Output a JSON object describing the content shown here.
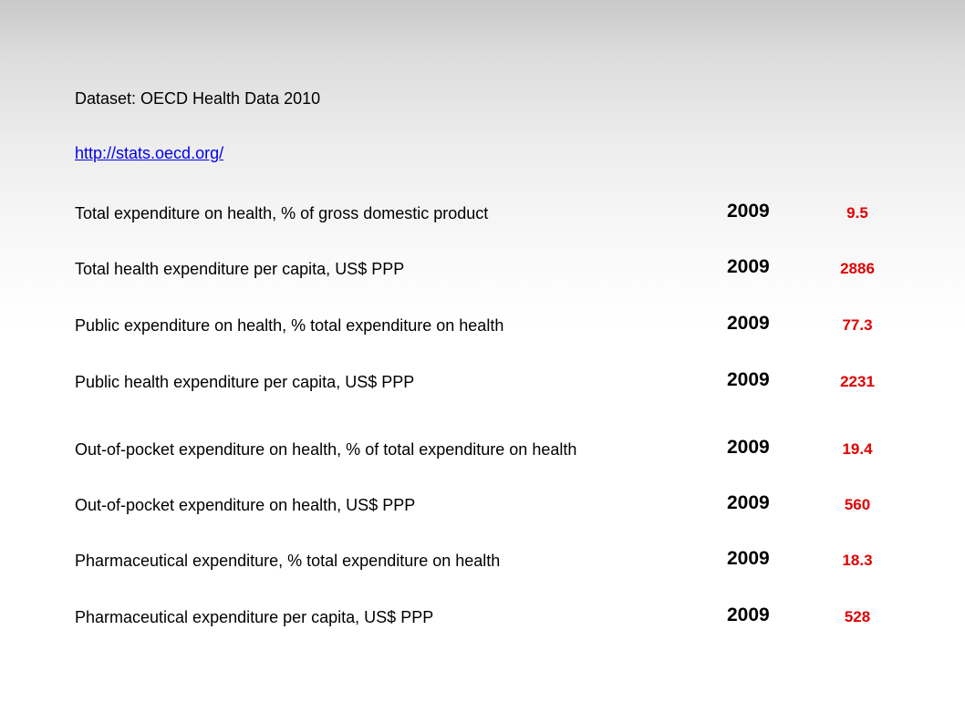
{
  "dataset_title": "Dataset: OECD Health Data 2010",
  "source_link": "http://stats.oecd.org/",
  "value_color": "#e00000",
  "rows": [
    {
      "label": "Total expenditure on health, % of gross domestic product",
      "year": "2009",
      "value": "9.5"
    },
    {
      "label": "Total health expenditure per capita, US$ PPP",
      "year": "2009",
      "value": "2886"
    },
    {
      "label": "Public expenditure on health, % total expenditure on health",
      "year": "2009",
      "value": "77.3"
    },
    {
      "label": "Public health expenditure per capita, US$ PPP",
      "year": "2009",
      "value": "2231"
    },
    {
      "label": "Out-of-pocket expenditure on health, % of total expenditure on health",
      "year": "2009",
      "value": "19.4"
    },
    {
      "label": "Out-of-pocket expenditure on health, US$ PPP",
      "year": "2009",
      "value": "560"
    },
    {
      "label": "Pharmaceutical expenditure, % total expenditure on health",
      "year": "2009",
      "value": "18.3"
    },
    {
      "label": "Pharmaceutical expenditure per capita, US$ PPP",
      "year": "2009",
      "value": "528"
    }
  ]
}
